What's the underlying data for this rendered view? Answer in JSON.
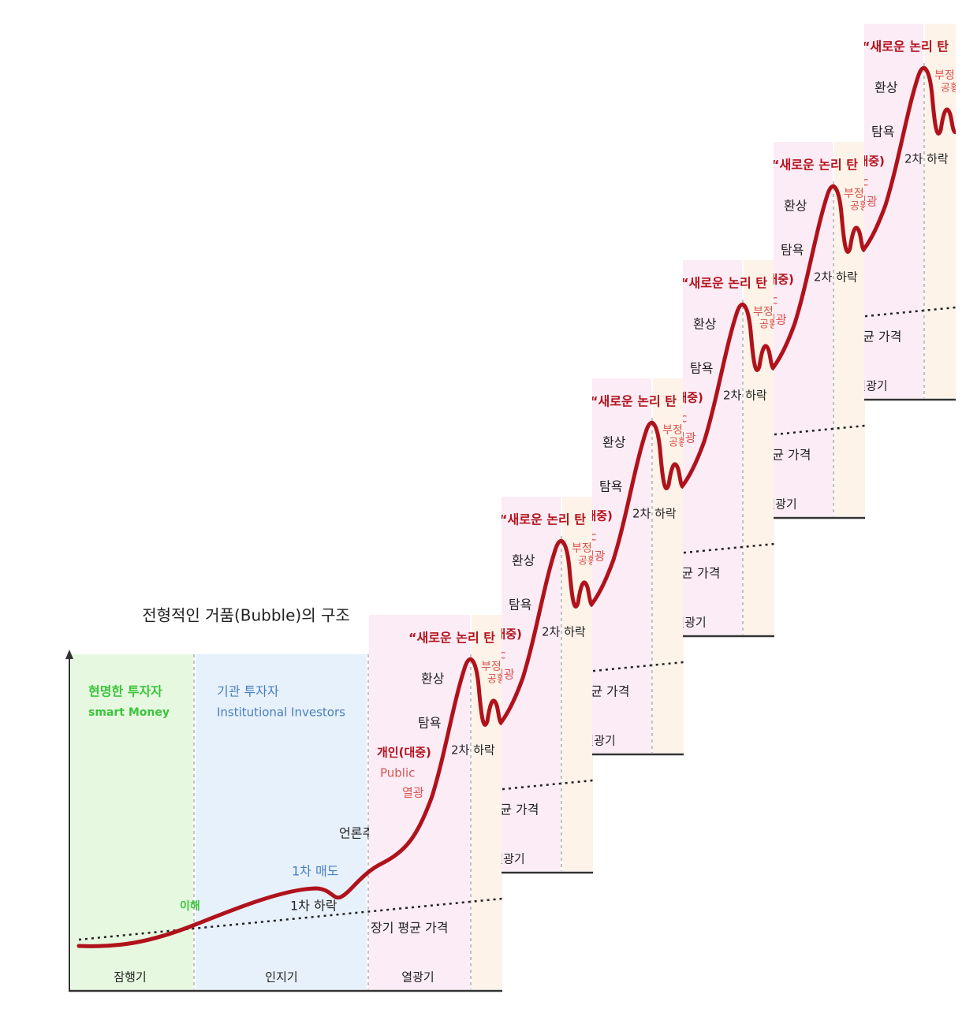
{
  "title": "전형적인 거품(Bubble)의 구조",
  "zones": [
    {
      "label": "현명한 투자자",
      "sublabel": "smart Money"
    },
    {
      "label": "기관 투자자",
      "sublabel": "Institutional Investors"
    },
    {
      "label": "개인(대중)",
      "sublabel": "Public",
      "note": "열광"
    }
  ],
  "annotations": {
    "understanding": "이해",
    "first_sell": "1차 매도",
    "first_drop": "1차 하락",
    "media": "언론주목",
    "new_logic": "“새로운 논리 탄",
    "illusion": "환상",
    "greed": "탐욕",
    "second_drop": "2차 하락",
    "denial": "부정",
    "panic": "공황",
    "long_term_avg": "장기 평균 가격"
  },
  "phases": [
    "잠행기",
    "인지기",
    "열광기"
  ]
}
